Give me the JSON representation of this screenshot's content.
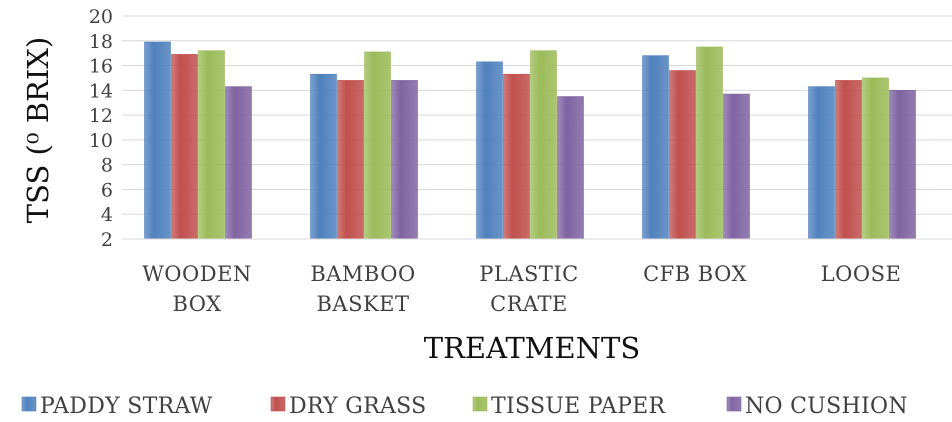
{
  "chart_data": {
    "type": "bar",
    "title": "",
    "xlabel": "TREATMENTS",
    "ylabel": "TSS  (⁰ BRIX)",
    "ylim": [
      2,
      20
    ],
    "yticks": [
      2,
      4,
      6,
      8,
      10,
      12,
      14,
      16,
      18,
      20
    ],
    "grid": true,
    "legend_position": "bottom",
    "categories": [
      [
        "WOODEN",
        "BOX"
      ],
      [
        "BAMBOO",
        "BASKET"
      ],
      [
        "PLASTIC",
        "CRATE"
      ],
      [
        "CFB BOX"
      ],
      [
        "LOOSE"
      ]
    ],
    "series": [
      {
        "name": "PADDY STRAW",
        "color": "#4F81BD",
        "values": [
          17.9,
          15.3,
          16.3,
          16.8,
          14.3
        ]
      },
      {
        "name": "DRY GRASS",
        "color": "#C0504D",
        "values": [
          16.9,
          14.8,
          15.3,
          15.6,
          14.8
        ]
      },
      {
        "name": "TISSUE PAPER",
        "color": "#9BBB59",
        "values": [
          17.2,
          17.1,
          17.2,
          17.5,
          15.0
        ]
      },
      {
        "name": "NO CUSHION",
        "color": "#8064A2",
        "values": [
          14.3,
          14.8,
          13.5,
          13.7,
          14.0
        ]
      }
    ]
  }
}
